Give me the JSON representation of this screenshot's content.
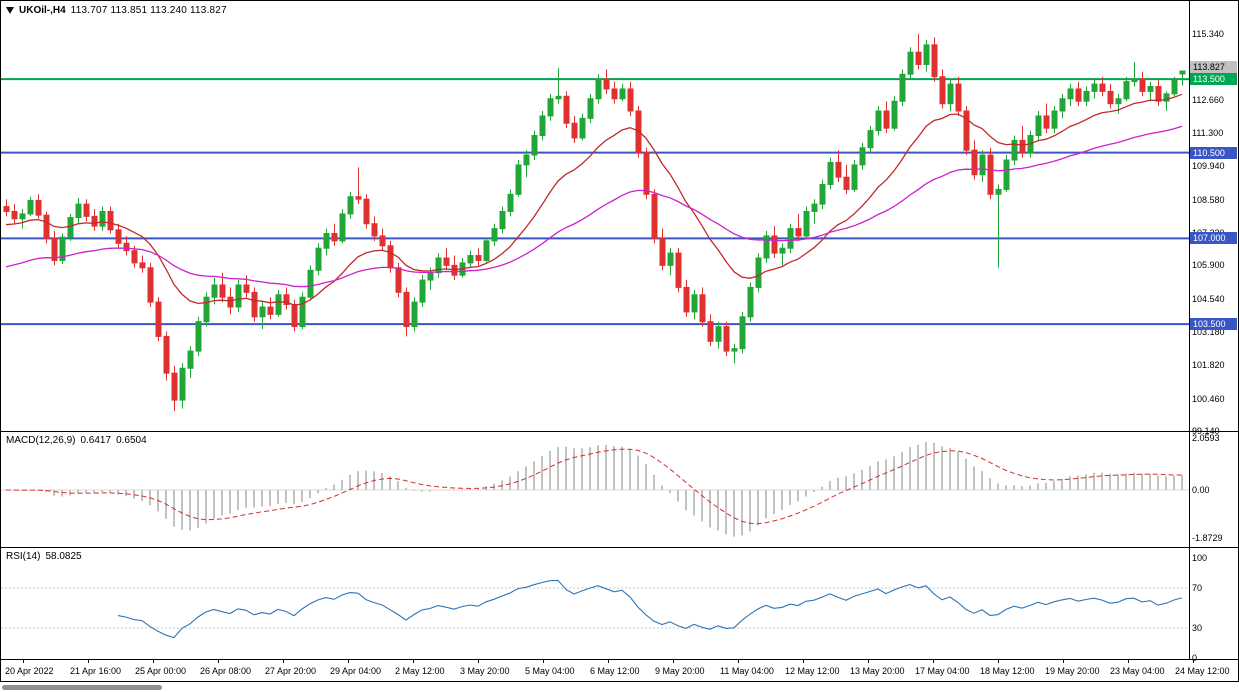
{
  "window": {
    "bg": "#FFFFFF",
    "border": "#000000"
  },
  "main_chart": {
    "symbol_period": "UKOil-,H4",
    "ohlc": "113.707 113.851 113.240 113.827"
  },
  "indicators": {
    "macd": {
      "name": "MACD(12,26,9)",
      "value_main": "0.6417",
      "value_signal": "0.6504",
      "scale": [
        "2.0593",
        "0.00",
        "-1.8729"
      ]
    },
    "rsi": {
      "name": "RSI(14)",
      "value": "58.0825",
      "scale": [
        "100",
        "70",
        "30",
        "0"
      ]
    }
  },
  "chart_data": {
    "type": "candlestick",
    "symbol": "UKOil-",
    "timeframe": "H4",
    "title": "UKOil-,H4 113.707 113.851 113.240 113.827",
    "ohlc_display": {
      "open": "113.707",
      "high": "113.851",
      "low": "113.240",
      "close": "113.827"
    },
    "y_axis": {
      "ticks": [
        115.34,
        112.66,
        111.3,
        109.94,
        108.58,
        107.22,
        105.9,
        104.54,
        103.18,
        101.82,
        100.46,
        99.14
      ],
      "decimals": 3
    },
    "x_axis": {
      "ticks": [
        "20 Apr 2022",
        "21 Apr 16:00",
        "25 Apr 00:00",
        "26 Apr 08:00",
        "27 Apr 20:00",
        "29 Apr 04:00",
        "2 May 12:00",
        "3 May 20:00",
        "5 May 04:00",
        "6 May 12:00",
        "9 May 20:00",
        "11 May 04:00",
        "12 May 12:00",
        "13 May 20:00",
        "17 May 04:00",
        "18 May 12:00",
        "19 May 20:00",
        "23 May 04:00",
        "24 May 12:00"
      ]
    },
    "horizontal_lines": [
      {
        "value": 113.5,
        "label": "113.500",
        "color": "#00A651",
        "width": 2
      },
      {
        "value": 110.5,
        "label": "110.500",
        "color": "#3A56C4",
        "width": 2
      },
      {
        "value": 107.0,
        "label": "107.000",
        "color": "#3A56C4",
        "width": 2
      },
      {
        "value": 103.5,
        "label": "103.500",
        "color": "#3A56C4",
        "width": 2
      }
    ],
    "current_price": {
      "value": 113.827,
      "label": "113.827",
      "badge_bg": "#C0C0C0",
      "badge_fg": "#000000"
    },
    "moving_averages": [
      {
        "name": "ma-fast",
        "type": "ema",
        "period": 16,
        "color": "#C02A2A"
      },
      {
        "name": "ma-slow",
        "type": "ema",
        "period": 48,
        "color": "#CC22CC"
      }
    ],
    "colors": {
      "bull": "#21A637",
      "bear": "#E03131",
      "macd_hist": "#C2C2C2",
      "macd_signal": "#D03030",
      "rsi_line": "#2E75B6",
      "levels": "#C9C9C9"
    },
    "macd_panel": {
      "type": "bar+line",
      "params": [
        12,
        26,
        9
      ],
      "y_ticks": [
        2.0593,
        0.0,
        -1.8729
      ]
    },
    "rsi_panel": {
      "type": "line",
      "period": 14,
      "current": 58.0825,
      "y_ticks": [
        100,
        70,
        30,
        0
      ],
      "levels": [
        70,
        30
      ]
    },
    "candles": [
      [
        108.3,
        108.6,
        107.9,
        108.1
      ],
      [
        108.1,
        108.4,
        107.6,
        107.8
      ],
      [
        107.8,
        108.2,
        107.4,
        108.0
      ],
      [
        108.0,
        108.7,
        107.9,
        108.55
      ],
      [
        108.55,
        108.8,
        107.8,
        107.95
      ],
      [
        107.95,
        108.1,
        106.8,
        107.0
      ],
      [
        107.0,
        107.3,
        105.9,
        106.1
      ],
      [
        106.1,
        107.2,
        105.95,
        107.05
      ],
      [
        107.05,
        108.0,
        106.9,
        107.85
      ],
      [
        107.85,
        108.65,
        107.6,
        108.4
      ],
      [
        108.4,
        108.6,
        107.7,
        107.9
      ],
      [
        107.9,
        108.2,
        107.3,
        107.5
      ],
      [
        107.5,
        108.3,
        107.3,
        108.1
      ],
      [
        108.1,
        108.3,
        107.2,
        107.35
      ],
      [
        107.35,
        107.6,
        106.6,
        106.8
      ],
      [
        106.8,
        107.1,
        106.3,
        106.5
      ],
      [
        106.5,
        106.7,
        105.8,
        106.0
      ],
      [
        106.0,
        106.3,
        105.6,
        105.8
      ],
      [
        105.8,
        106.0,
        104.2,
        104.4
      ],
      [
        104.4,
        104.6,
        102.8,
        103.0
      ],
      [
        103.0,
        103.2,
        101.2,
        101.5
      ],
      [
        101.5,
        101.8,
        99.95,
        100.4
      ],
      [
        100.4,
        101.9,
        100.05,
        101.7
      ],
      [
        101.7,
        102.6,
        101.3,
        102.4
      ],
      [
        102.4,
        103.8,
        102.2,
        103.6
      ],
      [
        103.6,
        104.8,
        103.4,
        104.6
      ],
      [
        104.6,
        105.4,
        104.3,
        105.1
      ],
      [
        105.1,
        105.6,
        104.4,
        104.6
      ],
      [
        104.6,
        105.0,
        103.9,
        104.2
      ],
      [
        104.2,
        105.3,
        104.0,
        105.1
      ],
      [
        105.1,
        105.5,
        104.6,
        104.8
      ],
      [
        104.8,
        105.0,
        103.6,
        103.8
      ],
      [
        103.8,
        104.4,
        103.3,
        104.2
      ],
      [
        104.2,
        104.6,
        103.7,
        103.9
      ],
      [
        103.9,
        104.9,
        103.8,
        104.7
      ],
      [
        104.7,
        105.0,
        104.1,
        104.3
      ],
      [
        104.3,
        104.5,
        103.2,
        103.4
      ],
      [
        103.4,
        104.8,
        103.3,
        104.6
      ],
      [
        104.6,
        105.9,
        104.5,
        105.7
      ],
      [
        105.7,
        106.8,
        105.5,
        106.6
      ],
      [
        106.6,
        107.4,
        106.3,
        107.2
      ],
      [
        107.2,
        107.6,
        106.7,
        106.9
      ],
      [
        106.9,
        108.2,
        106.8,
        108.0
      ],
      [
        108.0,
        108.9,
        107.8,
        108.7
      ],
      [
        108.7,
        109.9,
        108.4,
        108.6
      ],
      [
        108.6,
        108.8,
        107.4,
        107.6
      ],
      [
        107.6,
        107.9,
        106.9,
        107.1
      ],
      [
        107.1,
        107.4,
        106.5,
        106.7
      ],
      [
        106.7,
        106.9,
        105.6,
        105.8
      ],
      [
        105.8,
        106.0,
        104.6,
        104.8
      ],
      [
        104.8,
        105.0,
        103.0,
        103.4
      ],
      [
        103.4,
        104.6,
        103.2,
        104.4
      ],
      [
        104.4,
        105.5,
        104.2,
        105.3
      ],
      [
        105.3,
        105.8,
        104.9,
        105.6
      ],
      [
        105.6,
        106.4,
        105.4,
        106.2
      ],
      [
        106.2,
        106.6,
        105.7,
        105.9
      ],
      [
        105.9,
        106.3,
        105.3,
        105.5
      ],
      [
        105.5,
        106.2,
        105.4,
        106.0
      ],
      [
        106.0,
        106.5,
        105.8,
        106.3
      ],
      [
        106.3,
        106.6,
        105.9,
        106.1
      ],
      [
        106.1,
        107.0,
        106.0,
        106.9
      ],
      [
        106.9,
        107.6,
        106.7,
        107.4
      ],
      [
        107.4,
        108.3,
        107.2,
        108.1
      ],
      [
        108.1,
        109.0,
        107.9,
        108.8
      ],
      [
        108.8,
        110.2,
        108.7,
        110.0
      ],
      [
        110.0,
        110.6,
        109.5,
        110.4
      ],
      [
        110.4,
        111.4,
        110.2,
        111.2
      ],
      [
        111.2,
        112.2,
        111.0,
        112.0
      ],
      [
        112.0,
        112.9,
        111.8,
        112.7
      ],
      [
        112.7,
        113.95,
        112.5,
        112.8
      ],
      [
        112.8,
        113.0,
        111.5,
        111.7
      ],
      [
        111.7,
        112.0,
        110.9,
        111.1
      ],
      [
        111.1,
        112.1,
        111.0,
        111.9
      ],
      [
        111.9,
        112.9,
        111.7,
        112.7
      ],
      [
        112.7,
        113.7,
        112.5,
        113.5
      ],
      [
        113.5,
        113.9,
        112.9,
        113.1
      ],
      [
        113.1,
        113.4,
        112.5,
        112.7
      ],
      [
        112.7,
        113.3,
        112.6,
        113.1
      ],
      [
        113.1,
        113.4,
        112.0,
        112.2
      ],
      [
        112.2,
        112.4,
        110.3,
        110.5
      ],
      [
        110.5,
        110.7,
        108.6,
        108.8
      ],
      [
        108.8,
        109.0,
        106.8,
        107.0
      ],
      [
        107.0,
        107.4,
        105.7,
        105.9
      ],
      [
        105.9,
        106.6,
        105.5,
        106.4
      ],
      [
        106.4,
        106.6,
        104.8,
        105.0
      ],
      [
        105.0,
        105.3,
        103.8,
        104.0
      ],
      [
        104.0,
        104.9,
        103.7,
        104.7
      ],
      [
        104.7,
        105.0,
        103.4,
        103.6
      ],
      [
        103.6,
        103.9,
        102.6,
        102.8
      ],
      [
        102.8,
        103.6,
        102.5,
        103.4
      ],
      [
        103.4,
        103.6,
        102.2,
        102.4
      ],
      [
        102.4,
        102.7,
        101.9,
        102.5
      ],
      [
        102.5,
        104.0,
        102.3,
        103.8
      ],
      [
        103.8,
        105.2,
        103.6,
        105.0
      ],
      [
        105.0,
        106.4,
        104.8,
        106.2
      ],
      [
        106.2,
        107.3,
        106.0,
        107.1
      ],
      [
        107.1,
        107.5,
        106.2,
        106.4
      ],
      [
        106.4,
        106.8,
        105.9,
        106.6
      ],
      [
        106.6,
        107.6,
        106.4,
        107.4
      ],
      [
        107.4,
        108.0,
        106.9,
        107.1
      ],
      [
        107.1,
        108.3,
        107.0,
        108.1
      ],
      [
        108.1,
        108.6,
        107.6,
        108.4
      ],
      [
        108.4,
        109.4,
        108.2,
        109.2
      ],
      [
        109.2,
        110.3,
        109.0,
        110.1
      ],
      [
        110.1,
        110.6,
        109.3,
        109.5
      ],
      [
        109.5,
        110.0,
        108.8,
        109.0
      ],
      [
        109.0,
        110.2,
        108.9,
        110.0
      ],
      [
        110.0,
        110.9,
        109.8,
        110.7
      ],
      [
        110.7,
        111.6,
        110.5,
        111.4
      ],
      [
        111.4,
        112.4,
        111.2,
        112.2
      ],
      [
        112.2,
        112.6,
        111.3,
        111.5
      ],
      [
        111.5,
        112.8,
        111.4,
        112.6
      ],
      [
        112.6,
        113.9,
        112.4,
        113.7
      ],
      [
        113.7,
        114.8,
        113.5,
        114.6
      ],
      [
        114.6,
        115.34,
        113.9,
        114.1
      ],
      [
        114.1,
        115.1,
        113.8,
        114.9
      ],
      [
        114.9,
        115.2,
        113.4,
        113.6
      ],
      [
        113.6,
        113.9,
        112.3,
        112.5
      ],
      [
        112.5,
        113.5,
        112.2,
        113.3
      ],
      [
        113.3,
        113.6,
        112.0,
        112.2
      ],
      [
        112.2,
        112.4,
        110.4,
        110.6
      ],
      [
        110.6,
        111.0,
        109.4,
        109.6
      ],
      [
        109.6,
        110.6,
        109.3,
        110.4
      ],
      [
        110.4,
        110.7,
        108.6,
        108.8
      ],
      [
        108.8,
        109.2,
        105.8,
        109.0
      ],
      [
        109.0,
        110.4,
        108.9,
        110.2
      ],
      [
        110.2,
        111.2,
        110.0,
        111.0
      ],
      [
        111.0,
        111.6,
        110.3,
        110.5
      ],
      [
        110.5,
        111.4,
        110.3,
        111.2
      ],
      [
        111.2,
        112.2,
        111.0,
        112.0
      ],
      [
        112.0,
        112.5,
        111.3,
        111.5
      ],
      [
        111.5,
        112.4,
        111.3,
        112.2
      ],
      [
        112.2,
        112.9,
        111.9,
        112.7
      ],
      [
        112.7,
        113.3,
        112.4,
        113.1
      ],
      [
        113.1,
        113.4,
        112.4,
        112.6
      ],
      [
        112.6,
        113.2,
        112.4,
        113.0
      ],
      [
        113.0,
        113.5,
        112.7,
        113.3
      ],
      [
        113.3,
        113.6,
        112.8,
        113.0
      ],
      [
        113.0,
        113.3,
        112.3,
        112.5
      ],
      [
        112.5,
        112.9,
        112.1,
        112.7
      ],
      [
        112.7,
        113.6,
        112.6,
        113.4
      ],
      [
        113.4,
        114.2,
        113.2,
        113.5
      ],
      [
        113.5,
        113.8,
        112.8,
        113.0
      ],
      [
        113.0,
        113.4,
        112.6,
        113.2
      ],
      [
        113.2,
        113.5,
        112.4,
        112.6
      ],
      [
        112.6,
        113.0,
        112.2,
        112.9
      ],
      [
        112.9,
        113.6,
        112.8,
        113.45
      ],
      [
        113.71,
        113.85,
        113.24,
        113.83
      ]
    ]
  }
}
